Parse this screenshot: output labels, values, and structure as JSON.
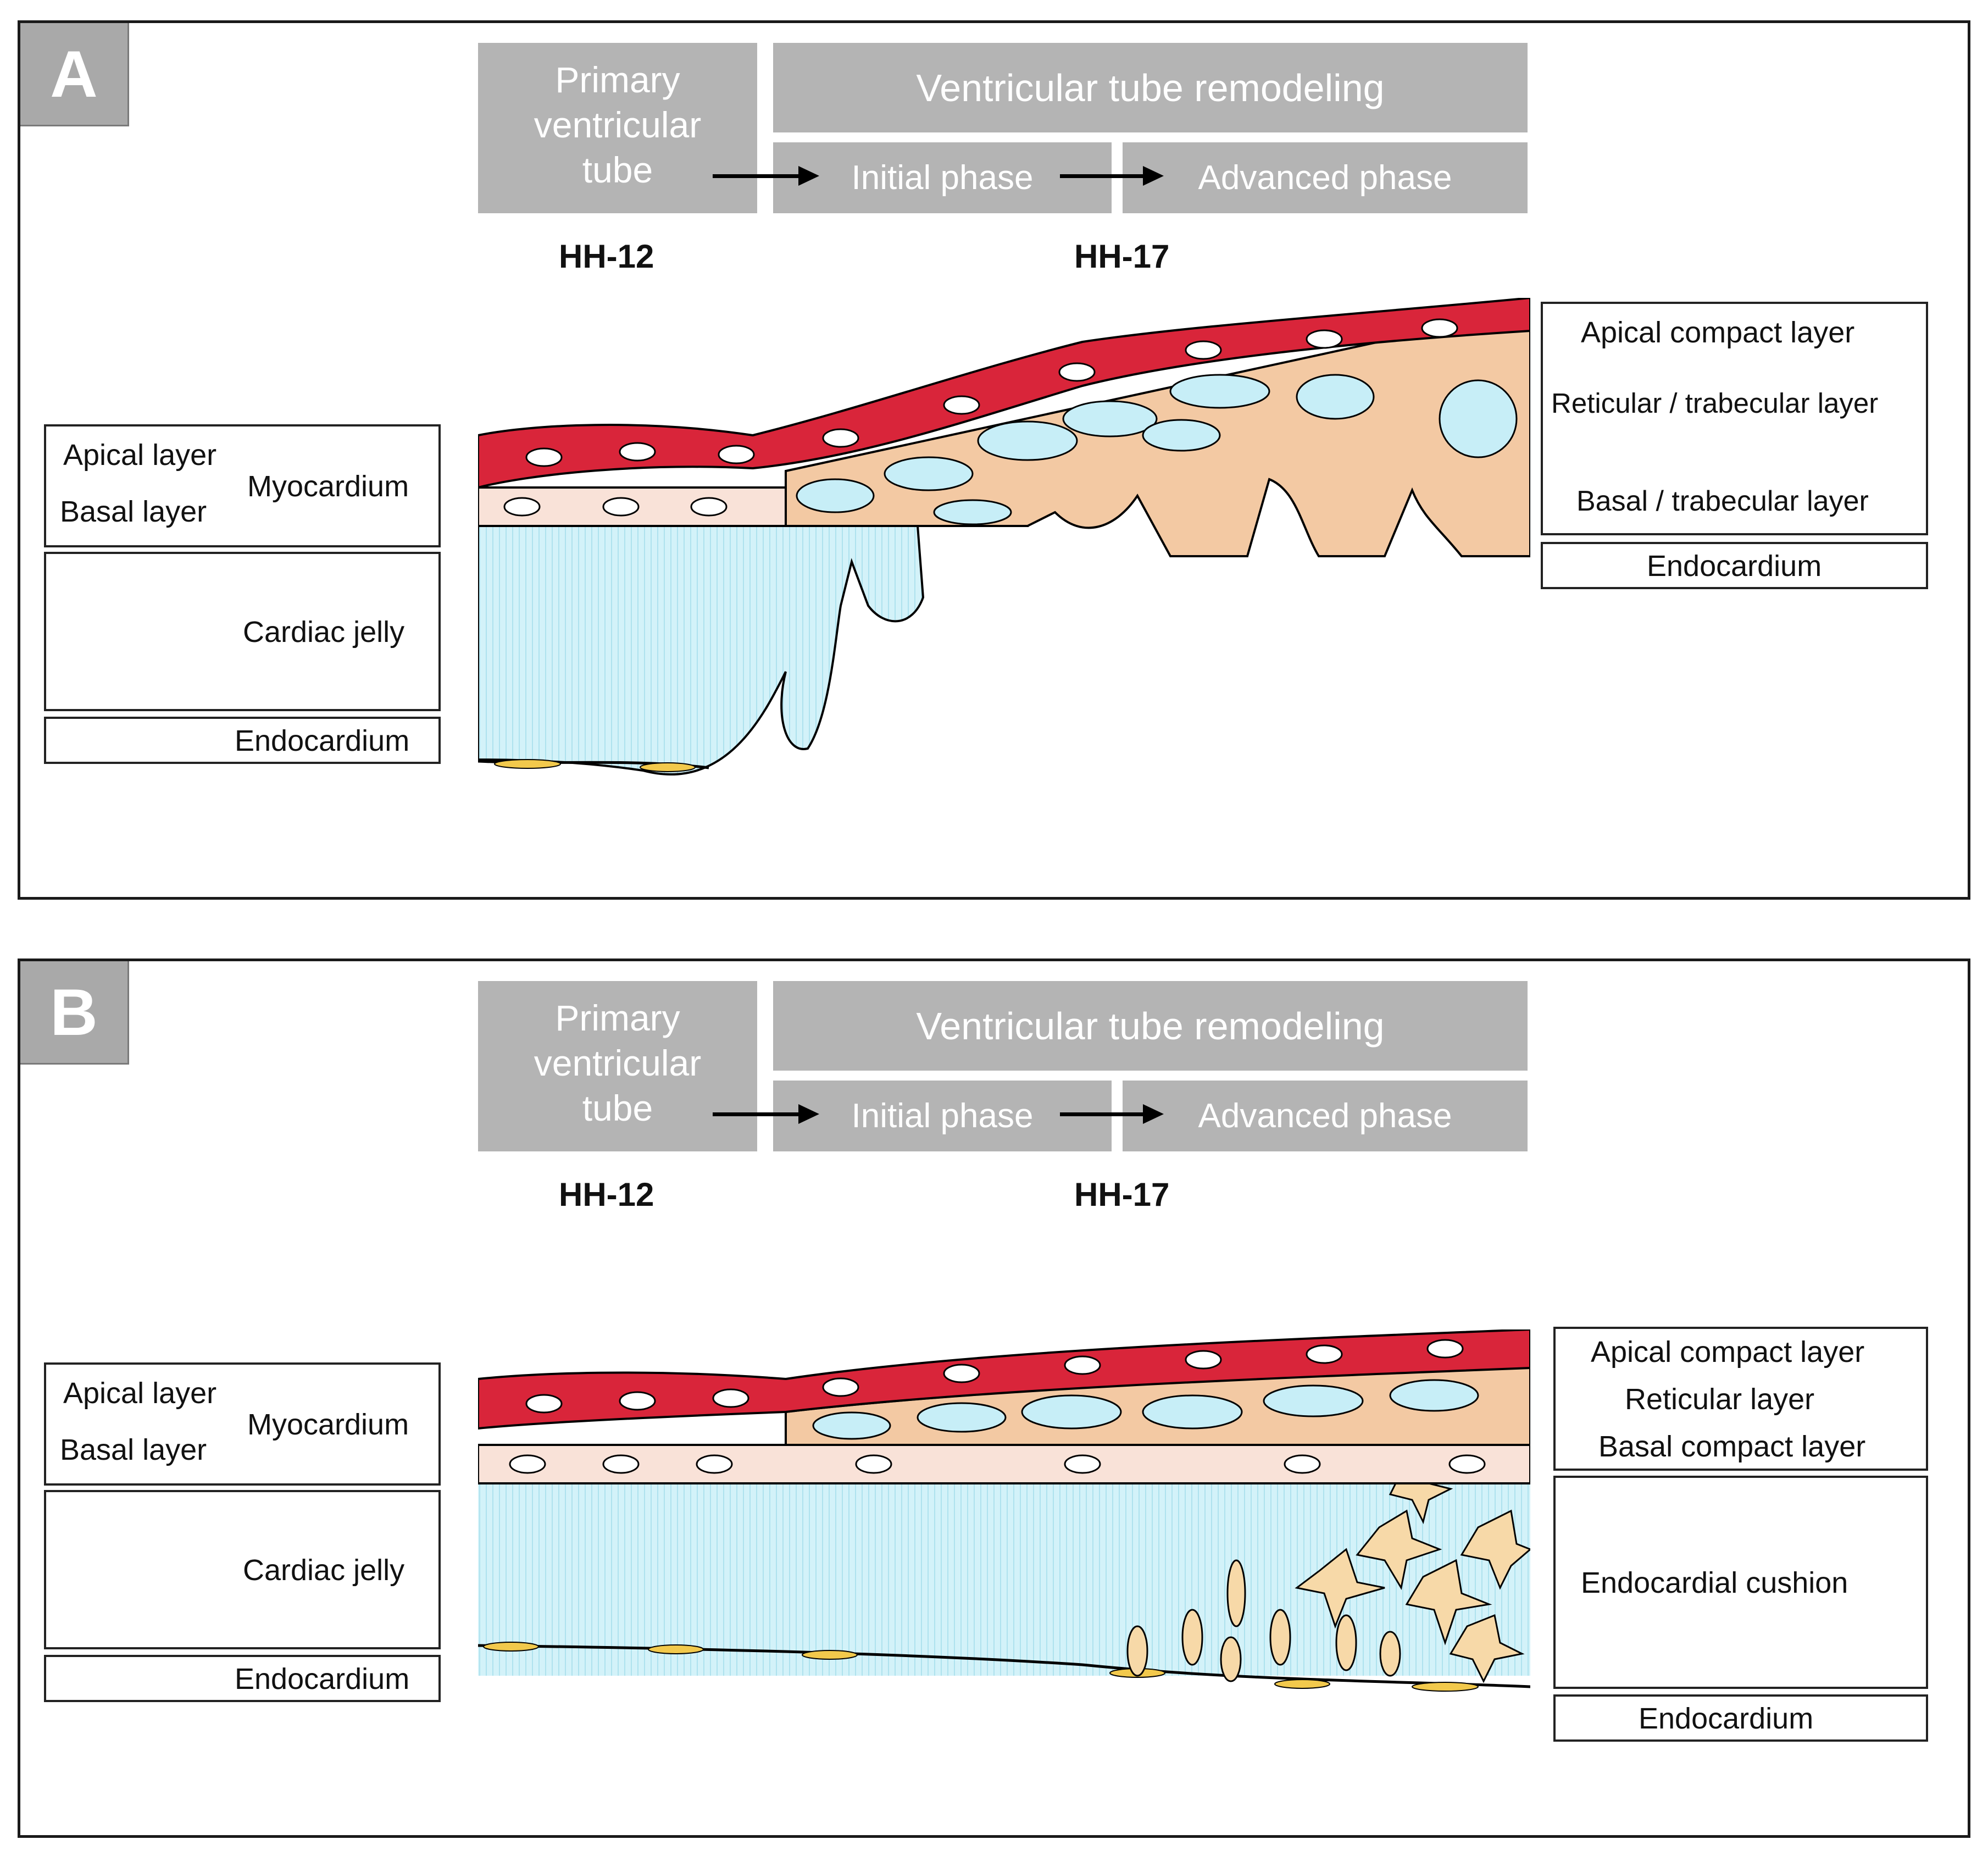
{
  "panel_a": {
    "letter": "A",
    "primary_tube": "Primary ventricular tube",
    "primary_lines": [
      "Primary",
      "ventricular",
      "tube"
    ],
    "remodeling": "Ventricular tube remodeling",
    "initial_phase": "Initial phase",
    "advanced_phase": "Advanced phase",
    "stage_1": "HH-12",
    "stage_2": "HH-17",
    "left": {
      "apical_layer": "Apical layer",
      "basal_layer": "Basal layer",
      "myocardium": "Myocardium",
      "cardiac_jelly": "Cardiac jelly",
      "endocardium": "Endocardium"
    },
    "right": {
      "apical_compact": "Apical compact layer",
      "reticular": "Reticular / trabecular layer",
      "basal": "Basal / trabecular layer",
      "endocardium": "Endocardium"
    }
  },
  "panel_b": {
    "letter": "B",
    "primary_lines": [
      "Primary",
      "ventricular",
      "tube"
    ],
    "remodeling": "Ventricular tube remodeling",
    "initial_phase": "Initial phase",
    "advanced_phase": "Advanced phase",
    "stage_1": "HH-12",
    "stage_2": "HH-17",
    "left": {
      "apical_layer": "Apical layer",
      "basal_layer": "Basal layer",
      "myocardium": "Myocardium",
      "cardiac_jelly": "Cardiac jelly",
      "endocardium": "Endocardium"
    },
    "right": {
      "apical_compact": "Apical compact layer",
      "reticular": "Reticular layer",
      "basal_compact": "Basal compact layer",
      "cushion": "Endocardial cushion",
      "endocardium": "Endocardium"
    }
  },
  "colors": {
    "header_gray": "#b4b4b4",
    "apical_red": "#d9253a",
    "basal_pink": "#f9e2d8",
    "reticular_tan": "#f3c9a3",
    "jelly_blue": "#c7eef7",
    "endocardium_yellow": "#f2c94c"
  }
}
